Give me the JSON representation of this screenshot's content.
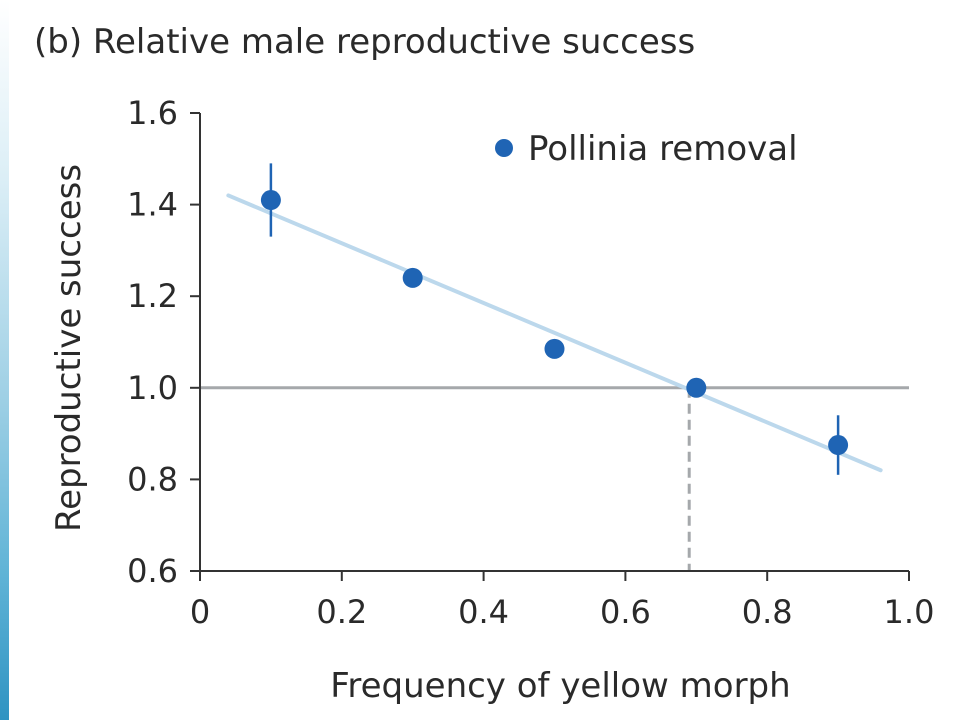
{
  "figure_title": "(b) Relative male reproductive success",
  "colors": {
    "points": "#1f64b4",
    "trendline": "#bcd8ec",
    "reference_line": "#a5a8ab",
    "axis": "#333333",
    "edge_strip": "#5fb3d6"
  },
  "chart_data": {
    "type": "scatter",
    "title": "(b) Relative male reproductive success",
    "xlabel": "Frequency of yellow morph",
    "ylabel": "Reproductive success",
    "xlim": [
      0,
      1.0
    ],
    "ylim": [
      0.6,
      1.6
    ],
    "x_ticks": [
      0,
      0.2,
      0.4,
      0.6,
      0.8,
      1.0
    ],
    "x_tick_labels": [
      "0",
      "0.2",
      "0.4",
      "0.6",
      "0.8",
      "1.0"
    ],
    "y_ticks": [
      0.6,
      0.8,
      1.0,
      1.2,
      1.4,
      1.6
    ],
    "y_tick_labels": [
      "0.6",
      "0.8",
      "1.0",
      "1.2",
      "1.4",
      "1.6"
    ],
    "grid": false,
    "legend_position": "top-right",
    "series": [
      {
        "name": "Pollinia removal",
        "x": [
          0.1,
          0.3,
          0.5,
          0.7,
          0.9
        ],
        "y": [
          1.41,
          1.24,
          1.085,
          1.0,
          0.875
        ],
        "error_low": [
          1.33,
          null,
          null,
          null,
          0.81
        ],
        "error_high": [
          1.49,
          null,
          null,
          null,
          0.94
        ]
      }
    ],
    "trendline": {
      "x": [
        0.04,
        0.96
      ],
      "y": [
        1.42,
        0.82
      ]
    },
    "reference_line_y": 1.0,
    "equilibrium_x": 0.69
  }
}
